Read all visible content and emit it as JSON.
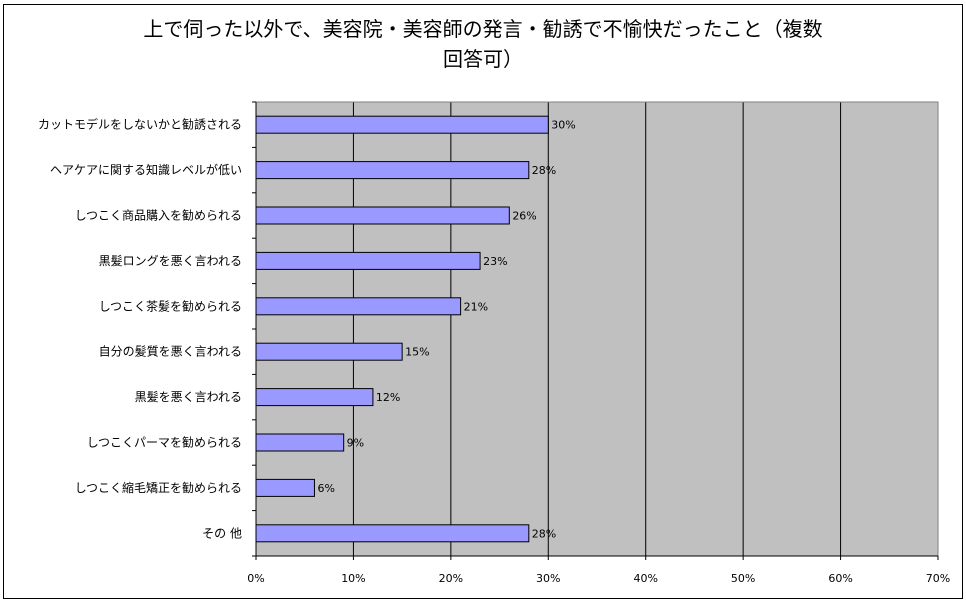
{
  "chart_data": {
    "type": "bar",
    "orientation": "horizontal",
    "title_line1": "上で伺った以外で、美容院・美容師の発言・勧誘で不愉快だったこと（複数",
    "title_line2": "回答可）",
    "categories": [
      "カットモデルをしないかと勧誘される",
      "ヘアケアに関する知識レベルが低い",
      "しつこく商品購入を勧められる",
      "黒髪ロングを悪く言われる",
      "しつこく茶髪を勧められる",
      "自分の髪質を悪く言われる",
      "黒髪を悪く言われる",
      "しつこくパーマを勧められる",
      "しつこく縮毛矯正を勧められる",
      "その 他"
    ],
    "values": [
      30,
      28,
      26,
      23,
      21,
      15,
      12,
      9,
      6,
      28
    ],
    "value_labels": [
      "30%",
      "28%",
      "26%",
      "23%",
      "21%",
      "15%",
      "12%",
      "9%",
      "6%",
      "28%"
    ],
    "xlim": [
      0,
      70
    ],
    "xticks": [
      "0%",
      "10%",
      "20%",
      "30%",
      "40%",
      "50%",
      "60%",
      "70%"
    ],
    "grid": true,
    "legend": "none",
    "colors": {
      "bar_fill": "#9999ff",
      "bar_stroke": "#000000",
      "plot_bg": "#c0c0c0",
      "grid": "#000000"
    }
  }
}
